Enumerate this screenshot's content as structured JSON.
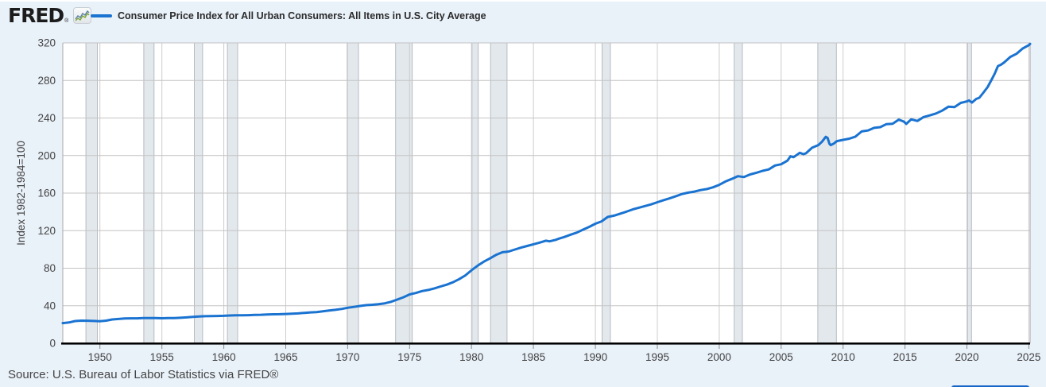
{
  "header": {
    "logo_text": "FRED",
    "logo_registered": "®",
    "legend_label": "Consumer Price Index for All Urban Consumers: All Items in U.S. City Average"
  },
  "footer": {
    "source_text": "Source: U.S. Bureau of Labor Statistics via FRED®"
  },
  "icons": {
    "logo_icon": "sparkline-icon",
    "legend_swatch": "line-swatch"
  },
  "colors": {
    "background": "#e9f1f9",
    "plot_background": "#ffffff",
    "line": "#1a73d1",
    "grid_vertical": "#cccccc",
    "grid_horizontal": "#c4c4c4",
    "recession_fill": "#e3e8ec",
    "recession_edge": "#b4bcc3",
    "plot_border": "#a9a9a9",
    "axis_line": "#000000",
    "tick_text": "#444444",
    "title_text": "#2b2b2b",
    "source_text": "#454545",
    "bottom_button": "#1565c8",
    "logo_icon_green": "#7fa53c",
    "logo_icon_blue": "#5e82a4"
  },
  "chart_data": {
    "type": "line",
    "title": "Consumer Price Index for All Urban Consumers: All Items in U.S. City Average",
    "xlabel": "",
    "ylabel": "Index 1982-1984=100",
    "x_range": [
      1947,
      2025.1
    ],
    "ylim": [
      0,
      320
    ],
    "y_ticks": [
      0,
      40,
      80,
      120,
      160,
      200,
      240,
      280,
      320
    ],
    "x_ticks": [
      1950,
      1955,
      1960,
      1965,
      1970,
      1975,
      1980,
      1985,
      1990,
      1995,
      2000,
      2005,
      2010,
      2015,
      2020,
      2025
    ],
    "grid": true,
    "legend_position": "top",
    "series": [
      {
        "name": "Consumer Price Index for All Urban Consumers: All Items in U.S. City Average",
        "x": [
          1947,
          1947.5,
          1948,
          1948.5,
          1949,
          1949.5,
          1950,
          1950.5,
          1951,
          1951.5,
          1952,
          1952.5,
          1953,
          1953.5,
          1954,
          1954.5,
          1955,
          1955.5,
          1956,
          1956.5,
          1957,
          1957.5,
          1958,
          1958.5,
          1959,
          1959.5,
          1960,
          1960.5,
          1961,
          1961.5,
          1962,
          1962.5,
          1963,
          1963.5,
          1964,
          1964.5,
          1965,
          1965.5,
          1966,
          1966.5,
          1967,
          1967.5,
          1968,
          1968.5,
          1969,
          1969.5,
          1970,
          1970.5,
          1971,
          1971.5,
          1972,
          1972.5,
          1973,
          1973.5,
          1974,
          1974.5,
          1975,
          1975.5,
          1976,
          1976.5,
          1977,
          1977.5,
          1978,
          1978.5,
          1979,
          1979.5,
          1980,
          1980.5,
          1981,
          1981.5,
          1982,
          1982.5,
          1983,
          1983.5,
          1984,
          1984.5,
          1985,
          1985.5,
          1986,
          1986.3,
          1986.8,
          1987,
          1987.5,
          1988,
          1988.5,
          1989,
          1989.5,
          1990,
          1990.5,
          1991,
          1991.5,
          1992,
          1992.5,
          1993,
          1993.5,
          1994,
          1994.5,
          1995,
          1995.5,
          1996,
          1996.5,
          1997,
          1997.5,
          1998,
          1998.5,
          1999,
          1999.5,
          2000,
          2000.5,
          2001,
          2001.5,
          2002,
          2002.5,
          2003,
          2003.5,
          2004,
          2004.5,
          2005,
          2005.5,
          2005.75,
          2006,
          2006.5,
          2006.8,
          2007,
          2007.5,
          2008,
          2008.3,
          2008.6,
          2008.75,
          2008.9,
          2009,
          2009.25,
          2009.5,
          2010,
          2010.5,
          2011,
          2011.5,
          2012,
          2012.5,
          2013,
          2013.5,
          2014,
          2014.5,
          2014.9,
          2015.1,
          2015.5,
          2016,
          2016.5,
          2017,
          2017.5,
          2018,
          2018.5,
          2019,
          2019.5,
          2020,
          2020.17,
          2020.4,
          2020.75,
          2021,
          2021.33,
          2021.67,
          2022,
          2022.25,
          2022.5,
          2022.75,
          2023,
          2023.5,
          2024,
          2024.5,
          2025,
          2025.1
        ],
        "values": [
          21.5,
          22.2,
          23.7,
          24.1,
          24.0,
          23.8,
          23.5,
          24.1,
          25.4,
          25.9,
          26.5,
          26.6,
          26.6,
          26.8,
          26.9,
          26.9,
          26.7,
          26.8,
          26.8,
          27.2,
          27.6,
          28.1,
          28.6,
          28.9,
          29.0,
          29.1,
          29.3,
          29.6,
          29.8,
          29.8,
          30.0,
          30.2,
          30.4,
          30.7,
          30.9,
          31.0,
          31.2,
          31.6,
          31.8,
          32.4,
          32.9,
          33.3,
          34.1,
          34.9,
          35.6,
          36.6,
          37.8,
          38.8,
          39.8,
          40.6,
          41.1,
          41.7,
          42.6,
          44.2,
          46.6,
          49.0,
          52.1,
          53.6,
          55.6,
          56.8,
          58.5,
          60.5,
          62.5,
          65.0,
          68.3,
          72.3,
          77.8,
          82.7,
          87.0,
          90.5,
          94.3,
          97.0,
          97.8,
          99.9,
          101.9,
          103.7,
          105.5,
          107.3,
          109.3,
          108.6,
          110.2,
          111.2,
          113.3,
          115.7,
          117.9,
          121.1,
          124.0,
          127.4,
          129.9,
          134.6,
          136.0,
          138.1,
          140.2,
          142.6,
          144.4,
          146.2,
          148.0,
          150.3,
          152.5,
          154.4,
          156.7,
          159.1,
          160.5,
          161.6,
          163.2,
          164.3,
          166.2,
          168.8,
          172.4,
          175.1,
          178.0,
          177.1,
          179.9,
          181.7,
          183.7,
          185.2,
          189.4,
          190.7,
          194.5,
          199.2,
          198.3,
          202.9,
          201.5,
          202.4,
          208.3,
          211.1,
          214.8,
          219.9,
          218.8,
          212.4,
          211.1,
          212.7,
          215.4,
          216.7,
          218.0,
          220.2,
          225.7,
          226.7,
          229.5,
          230.3,
          233.5,
          233.9,
          238.3,
          236.2,
          233.7,
          238.6,
          236.9,
          241.0,
          242.8,
          244.8,
          247.9,
          252.0,
          251.7,
          256.1,
          257.7,
          258.7,
          256.4,
          260.3,
          261.6,
          267.1,
          273.0,
          281.1,
          287.5,
          295.3,
          296.8,
          299.2,
          305.1,
          308.4,
          314.1,
          317.6,
          319.0
        ]
      }
    ],
    "recession_bands": [
      [
        1948.87,
        1949.79
      ],
      [
        1953.54,
        1954.37
      ],
      [
        1957.62,
        1958.29
      ],
      [
        1960.29,
        1961.12
      ],
      [
        1969.96,
        1970.87
      ],
      [
        1973.87,
        1975.21
      ],
      [
        1980.04,
        1980.54
      ],
      [
        1981.54,
        1982.87
      ],
      [
        1990.54,
        1991.21
      ],
      [
        2001.21,
        2001.87
      ],
      [
        2007.96,
        2009.46
      ],
      [
        2020.04,
        2020.37
      ]
    ]
  }
}
